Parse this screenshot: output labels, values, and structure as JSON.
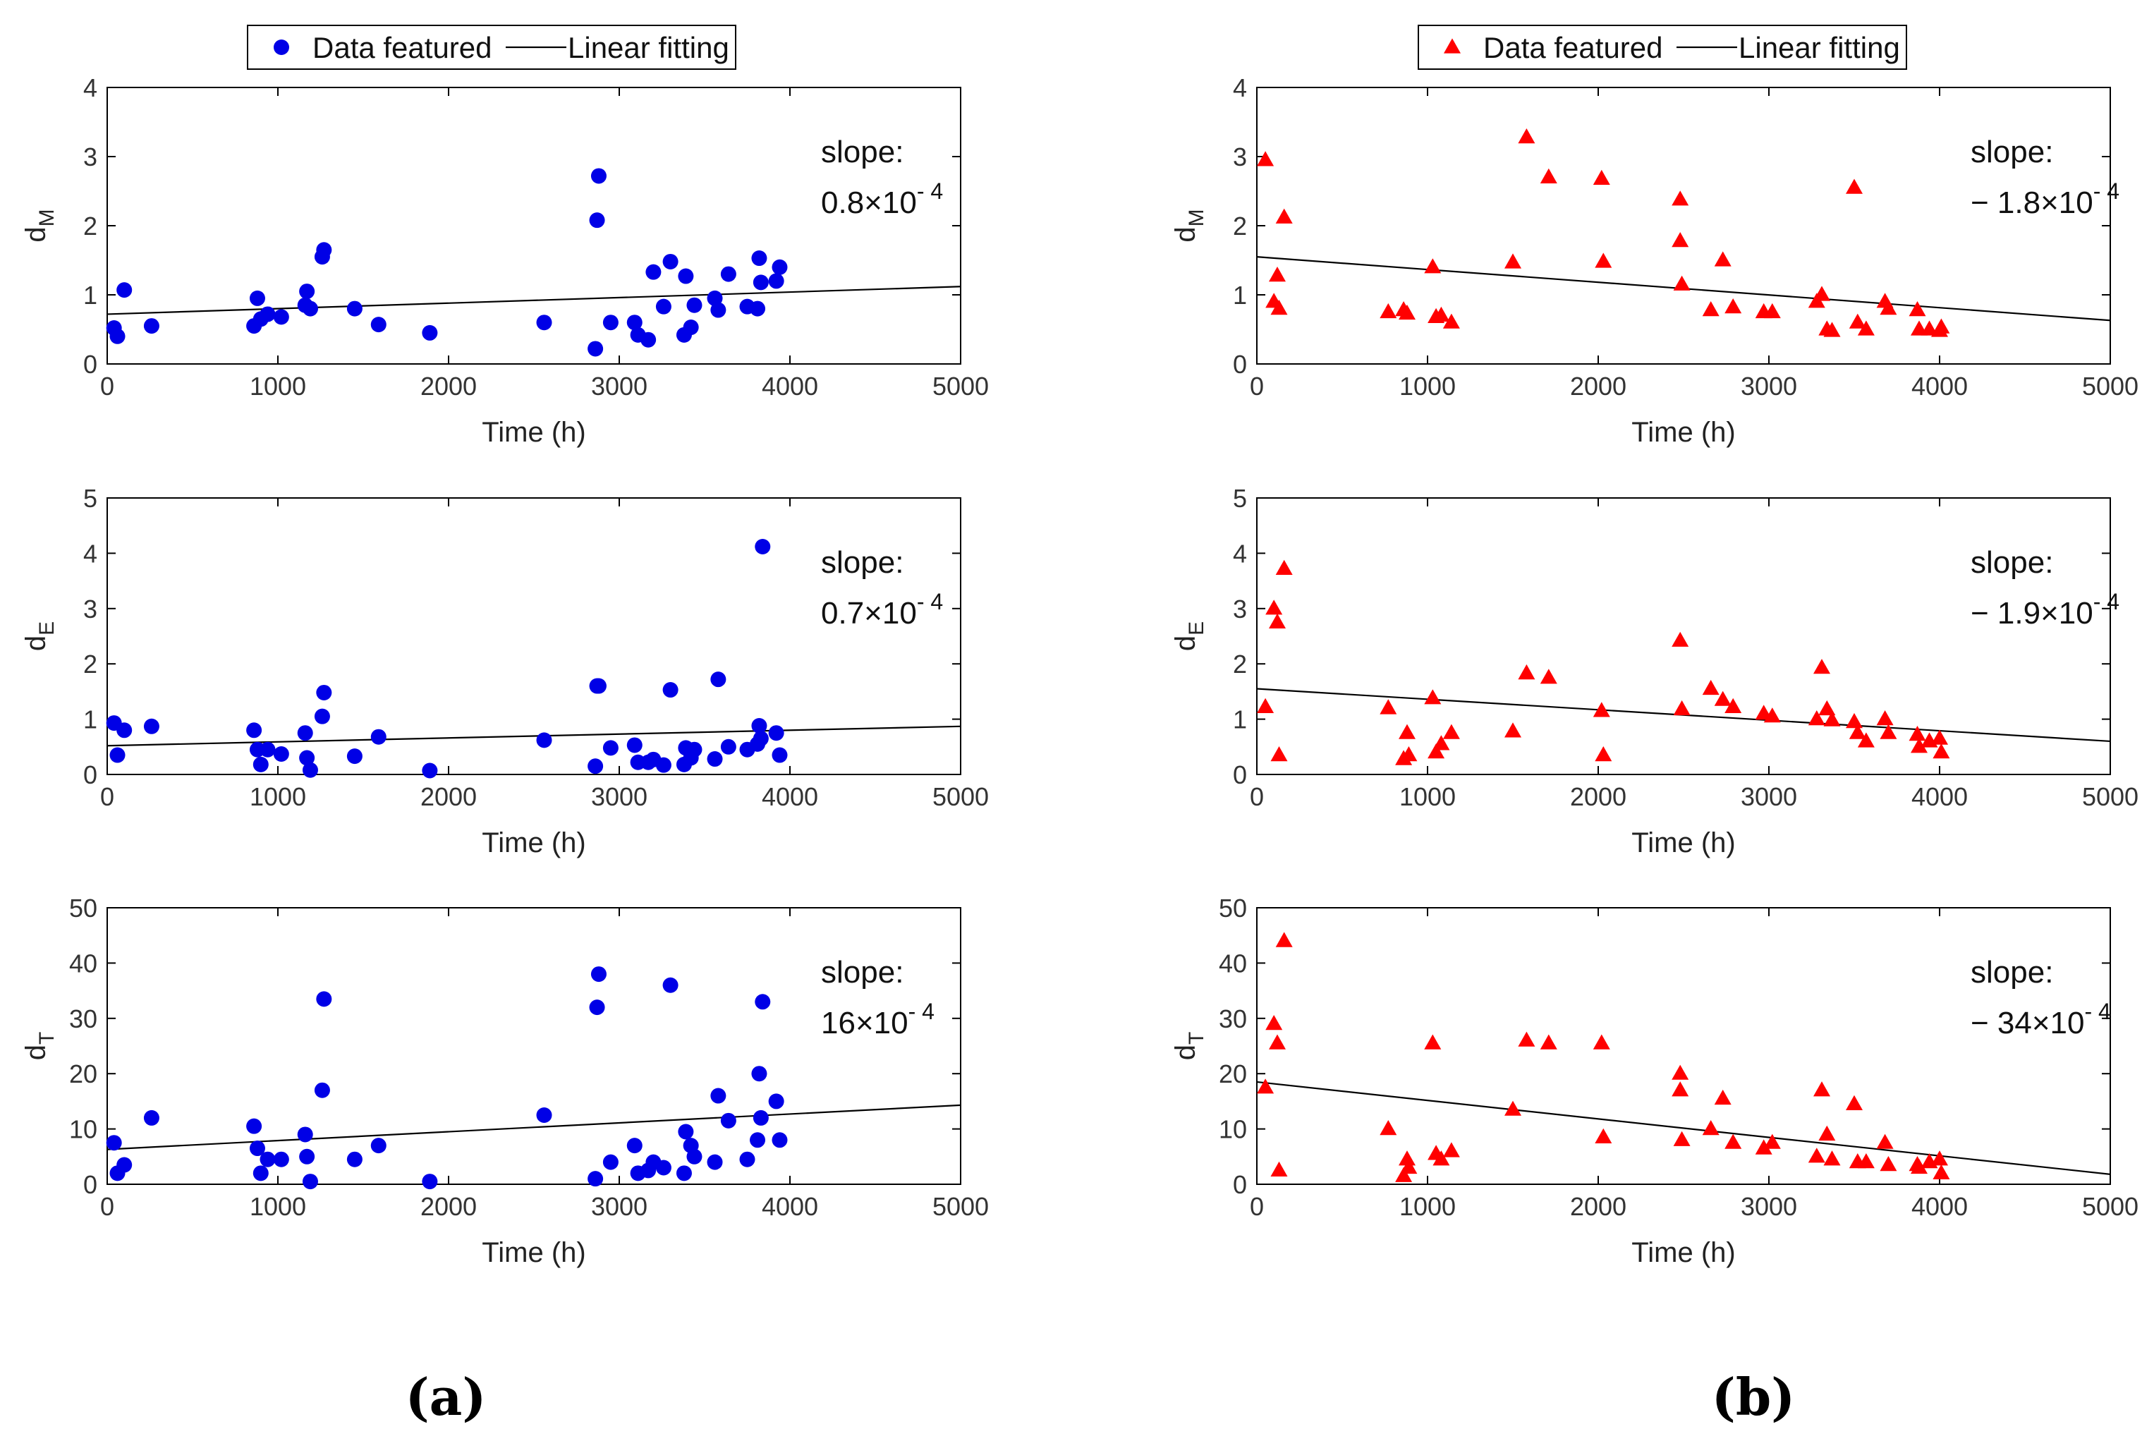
{
  "figure": {
    "panel_labels": [
      "(a)",
      "(b)"
    ]
  },
  "chart_data": [
    {
      "id": "a-dM",
      "type": "scatter",
      "column": "a",
      "xlabel": "Time (h)",
      "ylabel": "d",
      "ylabel_sub": "M",
      "xlim": [
        0,
        5000
      ],
      "ylim": [
        0,
        4
      ],
      "xticks": [
        0,
        1000,
        2000,
        3000,
        4000,
        5000
      ],
      "yticks": [
        0,
        1,
        2,
        3,
        4
      ],
      "grid": false,
      "legend": {
        "entries": [
          "Data featured",
          "Linear fitting"
        ],
        "placement": "top-center"
      },
      "color": "#0000e6",
      "marker": "circle",
      "annotation": {
        "line1": "slope:",
        "coef": "0.8×10",
        "exp": "- 4"
      },
      "fit": [
        [
          0,
          0.72
        ],
        [
          5000,
          1.12
        ]
      ],
      "points": [
        [
          40,
          0.52
        ],
        [
          60,
          0.4
        ],
        [
          100,
          1.07
        ],
        [
          260,
          0.55
        ],
        [
          860,
          0.55
        ],
        [
          880,
          0.95
        ],
        [
          900,
          0.65
        ],
        [
          940,
          0.72
        ],
        [
          1020,
          0.68
        ],
        [
          1160,
          0.85
        ],
        [
          1170,
          1.05
        ],
        [
          1190,
          0.8
        ],
        [
          1260,
          1.55
        ],
        [
          1270,
          1.65
        ],
        [
          1450,
          0.8
        ],
        [
          1590,
          0.57
        ],
        [
          1890,
          0.45
        ],
        [
          2560,
          0.6
        ],
        [
          2860,
          0.22
        ],
        [
          2870,
          2.08
        ],
        [
          2880,
          2.72
        ],
        [
          2950,
          0.6
        ],
        [
          3090,
          0.6
        ],
        [
          3110,
          0.42
        ],
        [
          3170,
          0.35
        ],
        [
          3200,
          1.33
        ],
        [
          3260,
          0.83
        ],
        [
          3300,
          1.48
        ],
        [
          3380,
          0.42
        ],
        [
          3390,
          1.27
        ],
        [
          3420,
          0.53
        ],
        [
          3440,
          0.85
        ],
        [
          3560,
          0.95
        ],
        [
          3580,
          0.78
        ],
        [
          3640,
          1.3
        ],
        [
          3750,
          0.83
        ],
        [
          3810,
          0.8
        ],
        [
          3820,
          1.53
        ],
        [
          3830,
          1.18
        ],
        [
          3920,
          1.2
        ],
        [
          3940,
          1.4
        ]
      ]
    },
    {
      "id": "a-dE",
      "type": "scatter",
      "column": "a",
      "xlabel": "Time (h)",
      "ylabel": "d",
      "ylabel_sub": "E",
      "xlim": [
        0,
        5000
      ],
      "ylim": [
        0,
        5
      ],
      "xticks": [
        0,
        1000,
        2000,
        3000,
        4000,
        5000
      ],
      "yticks": [
        0,
        1,
        2,
        3,
        4,
        5
      ],
      "grid": false,
      "color": "#0000e6",
      "marker": "circle",
      "annotation": {
        "line1": "slope:",
        "coef": "0.7×10",
        "exp": "- 4"
      },
      "fit": [
        [
          0,
          0.52
        ],
        [
          5000,
          0.87
        ]
      ],
      "points": [
        [
          40,
          0.93
        ],
        [
          60,
          0.35
        ],
        [
          100,
          0.8
        ],
        [
          260,
          0.87
        ],
        [
          860,
          0.8
        ],
        [
          880,
          0.45
        ],
        [
          900,
          0.18
        ],
        [
          940,
          0.45
        ],
        [
          1020,
          0.37
        ],
        [
          1160,
          0.75
        ],
        [
          1170,
          0.3
        ],
        [
          1190,
          0.08
        ],
        [
          1260,
          1.05
        ],
        [
          1270,
          1.48
        ],
        [
          1450,
          0.33
        ],
        [
          1590,
          0.68
        ],
        [
          1890,
          0.07
        ],
        [
          2560,
          0.62
        ],
        [
          2860,
          0.15
        ],
        [
          2870,
          1.6
        ],
        [
          2880,
          1.6
        ],
        [
          2950,
          0.48
        ],
        [
          3090,
          0.53
        ],
        [
          3110,
          0.22
        ],
        [
          3170,
          0.22
        ],
        [
          3200,
          0.27
        ],
        [
          3260,
          0.17
        ],
        [
          3300,
          1.53
        ],
        [
          3380,
          0.18
        ],
        [
          3390,
          0.48
        ],
        [
          3420,
          0.3
        ],
        [
          3440,
          0.45
        ],
        [
          3560,
          0.28
        ],
        [
          3580,
          1.72
        ],
        [
          3640,
          0.5
        ],
        [
          3750,
          0.45
        ],
        [
          3810,
          0.55
        ],
        [
          3820,
          0.88
        ],
        [
          3830,
          0.65
        ],
        [
          3840,
          4.12
        ],
        [
          3920,
          0.75
        ],
        [
          3940,
          0.35
        ]
      ]
    },
    {
      "id": "a-dT",
      "type": "scatter",
      "column": "a",
      "xlabel": "Time (h)",
      "ylabel": "d",
      "ylabel_sub": "T",
      "xlim": [
        0,
        5000
      ],
      "ylim": [
        0,
        50
      ],
      "xticks": [
        0,
        1000,
        2000,
        3000,
        4000,
        5000
      ],
      "yticks": [
        0,
        10,
        20,
        30,
        40,
        50
      ],
      "grid": false,
      "color": "#0000e6",
      "marker": "circle",
      "annotation": {
        "line1": "slope:",
        "coef": "16×10",
        "exp": "- 4"
      },
      "fit": [
        [
          0,
          6.3
        ],
        [
          5000,
          14.3
        ]
      ],
      "points": [
        [
          40,
          7.5
        ],
        [
          60,
          2
        ],
        [
          100,
          3.5
        ],
        [
          260,
          12
        ],
        [
          860,
          10.5
        ],
        [
          880,
          6.5
        ],
        [
          900,
          2
        ],
        [
          940,
          4.5
        ],
        [
          1020,
          4.5
        ],
        [
          1160,
          9
        ],
        [
          1170,
          5
        ],
        [
          1190,
          0.5
        ],
        [
          1260,
          17
        ],
        [
          1270,
          33.5
        ],
        [
          1450,
          4.5
        ],
        [
          1590,
          7
        ],
        [
          1890,
          0.5
        ],
        [
          2560,
          12.5
        ],
        [
          2860,
          1
        ],
        [
          2870,
          32
        ],
        [
          2880,
          38
        ],
        [
          2950,
          4
        ],
        [
          3090,
          7
        ],
        [
          3110,
          2
        ],
        [
          3170,
          2.5
        ],
        [
          3200,
          4
        ],
        [
          3260,
          3
        ],
        [
          3300,
          36
        ],
        [
          3380,
          2
        ],
        [
          3390,
          9.5
        ],
        [
          3420,
          7
        ],
        [
          3440,
          5
        ],
        [
          3560,
          4
        ],
        [
          3580,
          16
        ],
        [
          3640,
          11.5
        ],
        [
          3750,
          4.5
        ],
        [
          3810,
          8
        ],
        [
          3820,
          20
        ],
        [
          3830,
          12
        ],
        [
          3840,
          33
        ],
        [
          3920,
          15
        ],
        [
          3940,
          8
        ]
      ]
    },
    {
      "id": "b-dM",
      "type": "scatter",
      "column": "b",
      "xlabel": "Time (h)",
      "ylabel": "d",
      "ylabel_sub": "M",
      "xlim": [
        0,
        5000
      ],
      "ylim": [
        0,
        4
      ],
      "xticks": [
        0,
        1000,
        2000,
        3000,
        4000,
        5000
      ],
      "yticks": [
        0,
        1,
        2,
        3,
        4
      ],
      "grid": false,
      "legend": {
        "entries": [
          "Data featured",
          "Linear fitting"
        ],
        "placement": "top-center"
      },
      "color": "#ff0000",
      "marker": "triangle",
      "annotation": {
        "line1": "slope:",
        "coef": "−  1.8×10",
        "exp": "- 4"
      },
      "fit": [
        [
          0,
          1.55
        ],
        [
          5000,
          0.63
        ]
      ],
      "points": [
        [
          50,
          2.95
        ],
        [
          100,
          0.9
        ],
        [
          120,
          1.28
        ],
        [
          130,
          0.8
        ],
        [
          160,
          2.12
        ],
        [
          770,
          0.75
        ],
        [
          860,
          0.78
        ],
        [
          880,
          0.73
        ],
        [
          1030,
          1.4
        ],
        [
          1050,
          0.68
        ],
        [
          1080,
          0.7
        ],
        [
          1140,
          0.6
        ],
        [
          1500,
          1.47
        ],
        [
          1580,
          3.28
        ],
        [
          1710,
          2.7
        ],
        [
          2020,
          2.68
        ],
        [
          2030,
          1.48
        ],
        [
          2480,
          2.38
        ],
        [
          2480,
          1.78
        ],
        [
          2490,
          1.15
        ],
        [
          2660,
          0.78
        ],
        [
          2730,
          1.5
        ],
        [
          2790,
          0.82
        ],
        [
          2970,
          0.75
        ],
        [
          3020,
          0.75
        ],
        [
          3280,
          0.9
        ],
        [
          3310,
          1.0
        ],
        [
          3340,
          0.5
        ],
        [
          3370,
          0.48
        ],
        [
          3500,
          2.55
        ],
        [
          3520,
          0.6
        ],
        [
          3570,
          0.5
        ],
        [
          3680,
          0.9
        ],
        [
          3700,
          0.8
        ],
        [
          3870,
          0.78
        ],
        [
          3880,
          0.5
        ],
        [
          3940,
          0.5
        ],
        [
          4000,
          0.48
        ],
        [
          4010,
          0.53
        ]
      ]
    },
    {
      "id": "b-dE",
      "type": "scatter",
      "column": "b",
      "xlabel": "Time (h)",
      "ylabel": "d",
      "ylabel_sub": "E",
      "xlim": [
        0,
        5000
      ],
      "ylim": [
        0,
        5
      ],
      "xticks": [
        0,
        1000,
        2000,
        3000,
        4000,
        5000
      ],
      "yticks": [
        0,
        1,
        2,
        3,
        4,
        5
      ],
      "grid": false,
      "color": "#ff0000",
      "marker": "triangle",
      "annotation": {
        "line1": "slope:",
        "coef": "−  1.9×10",
        "exp": "- 4"
      },
      "fit": [
        [
          0,
          1.55
        ],
        [
          5000,
          0.6
        ]
      ],
      "points": [
        [
          50,
          1.22
        ],
        [
          100,
          3.0
        ],
        [
          120,
          2.75
        ],
        [
          130,
          0.35
        ],
        [
          160,
          3.72
        ],
        [
          770,
          1.2
        ],
        [
          860,
          0.28
        ],
        [
          880,
          0.75
        ],
        [
          890,
          0.35
        ],
        [
          1030,
          1.38
        ],
        [
          1050,
          0.4
        ],
        [
          1080,
          0.55
        ],
        [
          1140,
          0.75
        ],
        [
          1500,
          0.78
        ],
        [
          1580,
          1.83
        ],
        [
          1710,
          1.75
        ],
        [
          2020,
          1.15
        ],
        [
          2030,
          0.35
        ],
        [
          2480,
          2.42
        ],
        [
          2490,
          1.18
        ],
        [
          2660,
          1.55
        ],
        [
          2730,
          1.35
        ],
        [
          2790,
          1.22
        ],
        [
          2970,
          1.1
        ],
        [
          3020,
          1.05
        ],
        [
          3280,
          1.0
        ],
        [
          3310,
          1.93
        ],
        [
          3340,
          1.18
        ],
        [
          3370,
          0.98
        ],
        [
          3500,
          0.95
        ],
        [
          3520,
          0.75
        ],
        [
          3570,
          0.6
        ],
        [
          3680,
          1.0
        ],
        [
          3700,
          0.75
        ],
        [
          3870,
          0.72
        ],
        [
          3880,
          0.5
        ],
        [
          3940,
          0.6
        ],
        [
          4000,
          0.65
        ],
        [
          4010,
          0.4
        ]
      ]
    },
    {
      "id": "b-dT",
      "type": "scatter",
      "column": "b",
      "xlabel": "Time (h)",
      "ylabel": "d",
      "ylabel_sub": "T",
      "xlim": [
        0,
        5000
      ],
      "ylim": [
        0,
        50
      ],
      "xticks": [
        0,
        1000,
        2000,
        3000,
        4000,
        5000
      ],
      "yticks": [
        0,
        10,
        20,
        30,
        40,
        50
      ],
      "grid": false,
      "color": "#ff0000",
      "marker": "triangle",
      "annotation": {
        "line1": "slope:",
        "coef": "−  34×10",
        "exp": "- 4"
      },
      "fit": [
        [
          0,
          18.5
        ],
        [
          5000,
          1.8
        ]
      ],
      "points": [
        [
          50,
          17.5
        ],
        [
          100,
          29
        ],
        [
          120,
          25.5
        ],
        [
          130,
          2.5
        ],
        [
          160,
          44
        ],
        [
          770,
          10
        ],
        [
          860,
          1.5
        ],
        [
          880,
          4.5
        ],
        [
          890,
          3
        ],
        [
          1030,
          25.5
        ],
        [
          1050,
          5.5
        ],
        [
          1080,
          4.5
        ],
        [
          1140,
          6
        ],
        [
          1500,
          13.5
        ],
        [
          1580,
          26
        ],
        [
          1710,
          25.5
        ],
        [
          2020,
          25.5
        ],
        [
          2030,
          8.5
        ],
        [
          2480,
          17
        ],
        [
          2480,
          20
        ],
        [
          2490,
          8
        ],
        [
          2660,
          10
        ],
        [
          2730,
          15.5
        ],
        [
          2790,
          7.5
        ],
        [
          2970,
          6.5
        ],
        [
          3020,
          7.5
        ],
        [
          3280,
          5
        ],
        [
          3310,
          17
        ],
        [
          3340,
          9
        ],
        [
          3370,
          4.5
        ],
        [
          3500,
          14.5
        ],
        [
          3520,
          4
        ],
        [
          3570,
          4
        ],
        [
          3680,
          7.5
        ],
        [
          3700,
          3.5
        ],
        [
          3870,
          3.5
        ],
        [
          3880,
          3
        ],
        [
          3940,
          4
        ],
        [
          4000,
          4.5
        ],
        [
          4010,
          2
        ]
      ]
    }
  ]
}
